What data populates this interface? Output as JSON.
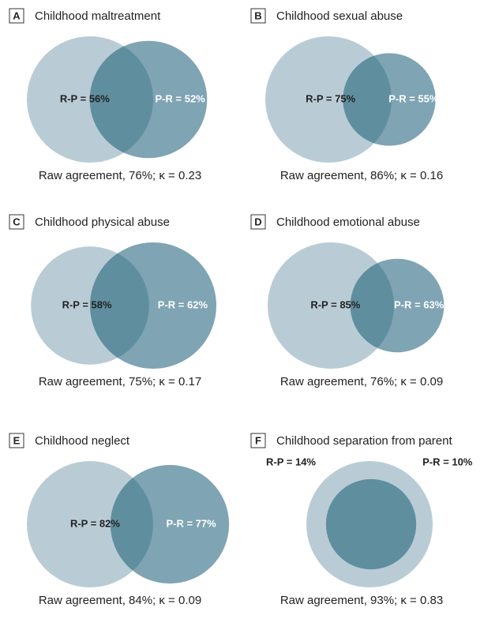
{
  "chart_data": [
    {
      "type": "venn",
      "panel": "A",
      "title": "Childhood maltreatment",
      "values": [
        56,
        52
      ],
      "value_labels": [
        "R-P = 56%",
        "P-R = 52%"
      ],
      "colors": [
        "#b9ccd6",
        "#7fa4b4"
      ],
      "overlap_color": "#5f8f9f",
      "caption": "Raw agreement, 76%; κ = 0.23"
    },
    {
      "type": "venn",
      "panel": "B",
      "title": "Childhood sexual abuse",
      "values": [
        75,
        55
      ],
      "value_labels": [
        "R-P = 75%",
        "P-R = 55%"
      ],
      "colors": [
        "#b9ccd6",
        "#7fa4b4"
      ],
      "overlap_color": "#5f8f9f",
      "caption": "Raw agreement, 86%; κ = 0.16"
    },
    {
      "type": "venn",
      "panel": "C",
      "title": "Childhood physical abuse",
      "values": [
        58,
        62
      ],
      "value_labels": [
        "R-P = 58%",
        "P-R = 62%"
      ],
      "colors": [
        "#b9ccd6",
        "#7fa4b4"
      ],
      "overlap_color": "#5f8f9f",
      "caption": "Raw agreement, 75%; κ = 0.17"
    },
    {
      "type": "venn",
      "panel": "D",
      "title": "Childhood emotional abuse",
      "values": [
        85,
        63
      ],
      "value_labels": [
        "R-P = 85%",
        "P-R = 63%"
      ],
      "colors": [
        "#b9ccd6",
        "#7fa4b4"
      ],
      "overlap_color": "#5f8f9f",
      "caption": "Raw agreement, 76%; κ = 0.09"
    },
    {
      "type": "venn",
      "panel": "E",
      "title": "Childhood neglect",
      "values": [
        82,
        77
      ],
      "value_labels": [
        "R-P = 82%",
        "P-R = 77%"
      ],
      "colors": [
        "#b9ccd6",
        "#7fa4b4"
      ],
      "overlap_color": "#5f8f9f",
      "caption": "Raw agreement, 84%; κ = 0.09"
    },
    {
      "type": "venn",
      "panel": "F",
      "title": "Childhood separation from parent",
      "values": [
        14,
        10
      ],
      "value_labels": [
        "R-P = 14%",
        "P-R = 10%"
      ],
      "colors": [
        "#b9ccd6",
        "#7fa4b4"
      ],
      "overlap_color": "#5f8f9f",
      "caption": "Raw agreement, 93%; κ = 0.83"
    }
  ]
}
